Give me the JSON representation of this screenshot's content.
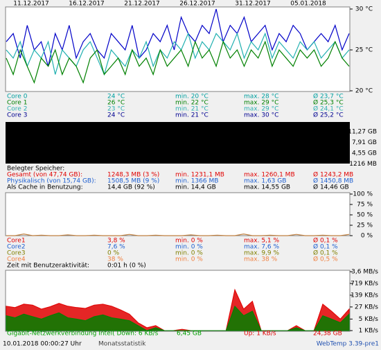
{
  "temperature": {
    "type": "line",
    "xlabels": [
      "11.12.2017",
      "16.12.2017",
      "21.12.2017",
      "26.12.2017",
      "31.12.2017",
      "05.01.2018"
    ],
    "ylim": [
      20,
      30
    ],
    "yticks": [
      {
        "value": 30,
        "label": "30 °C"
      },
      {
        "value": 25,
        "label": "25 °C"
      },
      {
        "value": 20,
        "label": "20 °C"
      }
    ],
    "series": [
      {
        "color": "#0000c8",
        "values": [
          26,
          27,
          24,
          28,
          25,
          26,
          23,
          27,
          25,
          28,
          24,
          26,
          27,
          25,
          24,
          27,
          26,
          25,
          28,
          24,
          25,
          27,
          26,
          28,
          25,
          29,
          27,
          26,
          28,
          27,
          30,
          26,
          28,
          27,
          29,
          26,
          27,
          28,
          25,
          27,
          26,
          28,
          27,
          25,
          26,
          27,
          26,
          28,
          25,
          27
        ]
      },
      {
        "color": "#20b0b0",
        "values": [
          25,
          24,
          26,
          23,
          25,
          24,
          26,
          22,
          25,
          24,
          23,
          25,
          26,
          24,
          22,
          25,
          24,
          23,
          25,
          24,
          26,
          23,
          25,
          24,
          26,
          25,
          27,
          24,
          26,
          25,
          27,
          26,
          25,
          27,
          24,
          26,
          25,
          27,
          24,
          26,
          25,
          24,
          26,
          25,
          26,
          24,
          25,
          26,
          24,
          25
        ]
      },
      {
        "color": "#008000",
        "values": [
          24,
          22,
          25,
          23,
          21,
          24,
          23,
          25,
          22,
          24,
          23,
          21,
          24,
          25,
          22,
          23,
          24,
          22,
          25,
          23,
          24,
          22,
          25,
          23,
          24,
          25,
          23,
          26,
          24,
          25,
          23,
          26,
          24,
          25,
          23,
          25,
          24,
          26,
          23,
          25,
          24,
          23,
          25,
          24,
          25,
          23,
          24,
          26,
          24,
          23
        ]
      }
    ],
    "rows": [
      {
        "color": "#00a0a0",
        "cells": [
          "Core 0",
          "24 °C",
          "min. 20 °C",
          "max. 28 °C",
          "Ø 23,7 °C"
        ]
      },
      {
        "color": "#008000",
        "cells": [
          "Core 1",
          "26 °C",
          "min. 22 °C",
          "max. 29 °C",
          "Ø 25,3 °C"
        ]
      },
      {
        "color": "#30b0b0",
        "cells": [
          "Core 2",
          "23 °C",
          "min. 21 °C",
          "max. 29 °C",
          "Ø 24,1 °C"
        ]
      },
      {
        "color": "#000090",
        "cells": [
          "Core 3",
          "24 °C",
          "min. 21 °C",
          "max. 30 °C",
          "Ø 25,2 °C"
        ]
      }
    ]
  },
  "memory": {
    "axis_labels": [
      "11,27 GB",
      "7,91 GB",
      "4,55 GB",
      "1216 MB"
    ],
    "heading": "Belegter Speicher:",
    "rows": [
      {
        "color": "#e00000",
        "cells": [
          "Gesamt (von 47,74 GB):",
          "1248,3 MB (3 %)",
          "min. 1231,1 MB",
          "max. 1260,1 MB",
          "Ø 1243,2 MB"
        ]
      },
      {
        "color": "#2060d0",
        "cells": [
          "Physikalisch (von 15,74 GB):",
          "1508,5 MB (9 %)",
          "min. 1366 MB",
          "max. 1,63 GB",
          "Ø 1450,8 MB"
        ]
      },
      {
        "color": "#000000",
        "cells": [
          "Als Cache in Benutzung:",
          "14,4 GB (92 %)",
          "min. 14,4 GB",
          "max. 14,55 GB",
          "Ø 14,46 GB"
        ]
      }
    ]
  },
  "cpu": {
    "type": "line",
    "ylim": [
      0,
      100
    ],
    "yticks": [
      {
        "value": 100,
        "label": "100 %"
      },
      {
        "value": 75,
        "label": "75 %"
      },
      {
        "value": 50,
        "label": "50 %"
      },
      {
        "value": 25,
        "label": "25 %"
      },
      {
        "value": 0,
        "label": "0 %"
      }
    ],
    "series": [
      {
        "color": "#c08040",
        "values": [
          0,
          0,
          4,
          0,
          1,
          0,
          0,
          2,
          0,
          0,
          1,
          0,
          0,
          0,
          3,
          0,
          0,
          1,
          0,
          0,
          0,
          2,
          0,
          0,
          1,
          0,
          0,
          4,
          0,
          0,
          1,
          0,
          0,
          3,
          0,
          0,
          1,
          0,
          0,
          3
        ]
      }
    ],
    "rows": [
      {
        "color": "#e00000",
        "cells": [
          "Core1",
          "3,8 %",
          "min. 0 %",
          "max. 5,1 %",
          "Ø 0,1 %"
        ]
      },
      {
        "color": "#2060d0",
        "cells": [
          "Core2",
          "7,6 %",
          "min. 0 %",
          "max. 7,6 %",
          "Ø 0,1 %"
        ]
      },
      {
        "color": "#808000",
        "cells": [
          "Core3",
          "0 %",
          "min. 0 %",
          "max. 9,9 %",
          "Ø 0,1 %"
        ]
      },
      {
        "color": "#f08040",
        "cells": [
          "Core4",
          "38 %",
          "min. 0 %",
          "max. 38 %",
          "Ø 0,5 %"
        ]
      }
    ],
    "activity": [
      "Zeit mit Benutzeraktivität:",
      "0:01 h (0 %)"
    ]
  },
  "network": {
    "type": "area",
    "log_scale": true,
    "ylim": [
      1,
      3686
    ],
    "yticks": [
      {
        "value": 3686,
        "label": "3,6 MB/s"
      },
      {
        "value": 719,
        "label": "719 KB/s"
      },
      {
        "value": 139,
        "label": "139 KB/s"
      },
      {
        "value": 27,
        "label": "27 KB/s"
      },
      {
        "value": 5,
        "label": "5 KB/s"
      },
      {
        "value": 1,
        "label": "1 KB/s"
      }
    ],
    "series": [
      {
        "color": "#e00000",
        "values": [
          30,
          25,
          40,
          35,
          20,
          28,
          45,
          30,
          25,
          22,
          35,
          40,
          30,
          18,
          10,
          3,
          1.5,
          2,
          1,
          1,
          1.2,
          1,
          1,
          1,
          1,
          1,
          300,
          20,
          60,
          1,
          1,
          1,
          1,
          2,
          1,
          1,
          40,
          15,
          5,
          20
        ]
      },
      {
        "color": "#008000",
        "values": [
          8,
          6,
          10,
          7,
          5,
          8,
          12,
          6,
          5,
          4,
          7,
          9,
          6,
          5,
          4,
          2,
          1,
          1.5,
          1,
          1,
          1,
          1,
          1,
          1,
          1,
          1,
          30,
          8,
          15,
          1,
          1,
          1,
          1,
          1.5,
          1,
          1,
          8,
          5,
          3,
          10
        ]
      }
    ],
    "row": [
      {
        "color": "#00a000",
        "text": "Gigabit-Netzwerkverbindung Intel(  Down: 6 KB/s"
      },
      {
        "color": "#00a000",
        "text": "6,45 GB"
      },
      {
        "color": "#e00000",
        "text": "Up: 1 KB/s"
      },
      {
        "color": "#e00000",
        "text": "24,38 GB"
      }
    ]
  },
  "footer": {
    "timestamp": "10.01.2018 00:00:27 Uhr",
    "link": "Monatsstatistik",
    "version": "WebTemp 3.39-pre1"
  }
}
